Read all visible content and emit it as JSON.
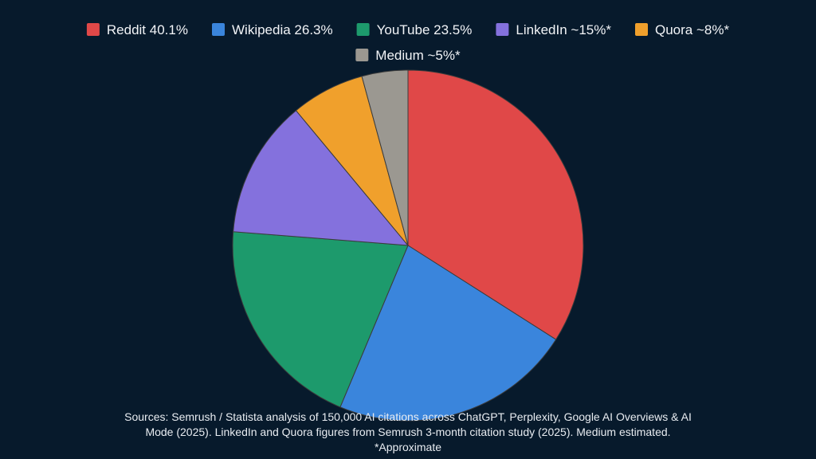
{
  "chart_data": {
    "type": "pie",
    "slices": [
      {
        "label": "Reddit 40.1%",
        "value": 40.1,
        "color": "#e04848"
      },
      {
        "label": "Wikipedia 26.3%",
        "value": 26.3,
        "color": "#3a85dc"
      },
      {
        "label": "YouTube 23.5%",
        "value": 23.5,
        "color": "#1d9a6c"
      },
      {
        "label": "LinkedIn ~15%*",
        "value": 15,
        "color": "#8471dd"
      },
      {
        "label": "Quora ~8%*",
        "value": 8,
        "color": "#f0a02c"
      },
      {
        "label": "Medium ~5%*",
        "value": 5,
        "color": "#9b9891"
      }
    ],
    "legend": "top",
    "start": "12 o'clock, clockwise"
  },
  "footnote": {
    "line1": "Sources: Semrush / Statista analysis of 150,000 AI citations across ChatGPT, Perplexity, Google AI Overviews & AI",
    "line2": "Mode (2025). LinkedIn and Quora figures from Semrush 3-month citation study (2025). Medium estimated.",
    "line3": "*Approximate"
  }
}
